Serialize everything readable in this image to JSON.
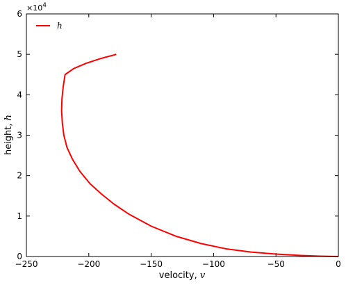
{
  "chart_data": {
    "type": "line",
    "xlabel": "velocity,",
    "xlabel_var": "v",
    "ylabel": "height,",
    "ylabel_var": "h",
    "xlim": [
      -250,
      0
    ],
    "ylim": [
      0,
      6
    ],
    "y_multiplier_label": "×10",
    "y_multiplier_exp": "4",
    "xticks": [
      -250,
      -200,
      -150,
      -100,
      -50,
      0
    ],
    "xtick_labels": [
      "−250",
      "−200",
      "−150",
      "−100",
      "−50",
      "0"
    ],
    "yticks": [
      0,
      1,
      2,
      3,
      4,
      5,
      6
    ],
    "ytick_labels": [
      "0",
      "1",
      "2",
      "3",
      "4",
      "5",
      "6"
    ],
    "grid": false,
    "legend_position": "top-left",
    "series": [
      {
        "name": "h",
        "color": "#ff0000",
        "x": [
          -178,
          -190,
          -202,
          -212,
          -219,
          -220.5,
          -221.5,
          -221.8,
          -221.2,
          -220,
          -217.5,
          -213,
          -207,
          -199,
          -190,
          -180,
          -168,
          -150,
          -130,
          -110,
          -90,
          -70,
          -50,
          -30,
          -15,
          -5,
          0
        ],
        "y": [
          5.0,
          4.9,
          4.78,
          4.65,
          4.5,
          4.2,
          3.9,
          3.6,
          3.3,
          3.0,
          2.7,
          2.4,
          2.1,
          1.8,
          1.55,
          1.3,
          1.05,
          0.75,
          0.5,
          0.32,
          0.19,
          0.11,
          0.06,
          0.025,
          0.009,
          0.002,
          0
        ]
      }
    ]
  }
}
